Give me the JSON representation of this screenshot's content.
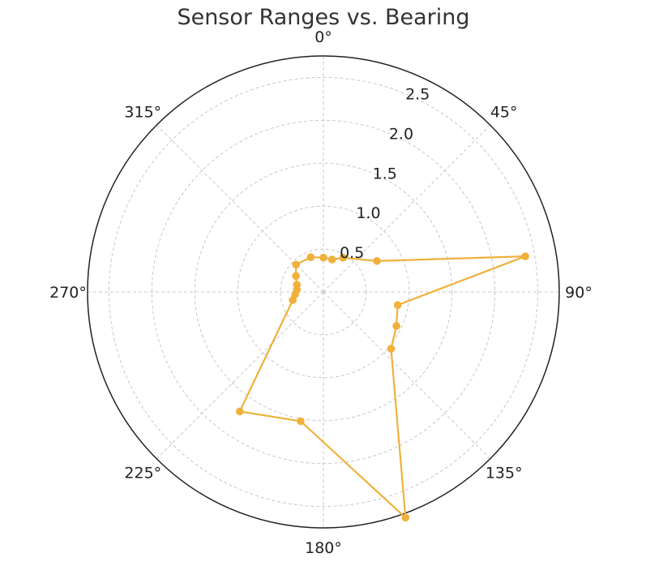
{
  "chart_data": {
    "type": "polar-line",
    "title": "Sensor Ranges vs. Bearing",
    "angle_unit": "degrees",
    "theta_zero": "top",
    "theta_direction": "clockwise",
    "angle_ticks": [
      0,
      45,
      90,
      135,
      180,
      225,
      270,
      315
    ],
    "angle_tick_labels": [
      "0°",
      "45°",
      "90°",
      "135°",
      "180°",
      "225°",
      "270°",
      "315°"
    ],
    "r_lim": [
      0,
      2.75
    ],
    "r_ticks": [
      0.5,
      1.0,
      1.5,
      2.0,
      2.5
    ],
    "r_tick_labels": [
      "0.5",
      "1.0",
      "1.5",
      "2.0",
      "2.5"
    ],
    "grid": true,
    "color": "#f0b13b",
    "series": [
      {
        "name": "Sensor Ranges",
        "theta": [
          0,
          15,
          30,
          60,
          80,
          100,
          115,
          130,
          160,
          190,
          215,
          255,
          265,
          275,
          285,
          300,
          315,
          340
        ],
        "r": [
          0.4,
          0.39,
          0.46,
          0.72,
          2.39,
          0.88,
          0.94,
          1.03,
          2.8,
          1.53,
          1.7,
          0.37,
          0.33,
          0.31,
          0.32,
          0.37,
          0.45,
          0.43
        ]
      }
    ]
  }
}
